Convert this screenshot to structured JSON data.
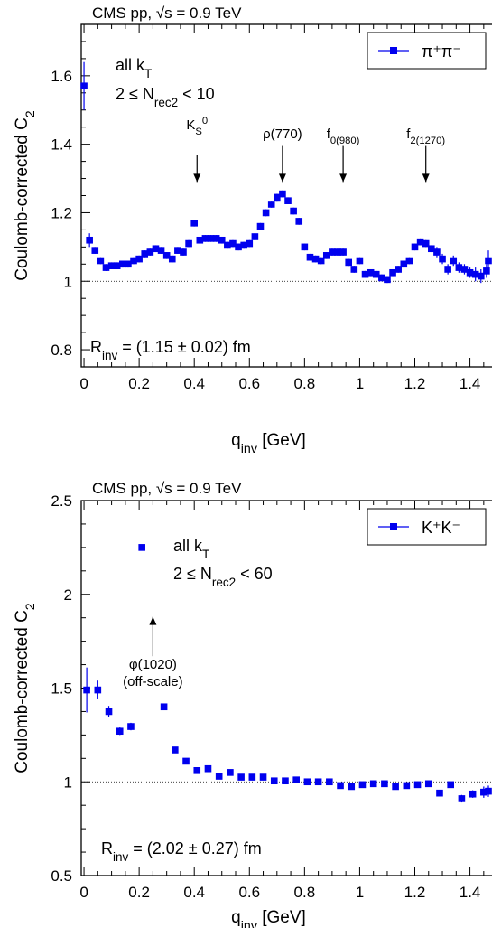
{
  "chart_data": [
    {
      "type": "scatter",
      "header": "CMS pp, √s = 0.9 TeV",
      "legend": {
        "entry": "π⁺π⁻",
        "placement": "top-right"
      },
      "xlabel": "q_inv [GeV]",
      "ylabel": "Coulomb-corrected C_2",
      "xlim": [
        -0.01,
        1.48
      ],
      "ylim": [
        0.75,
        1.75
      ],
      "xticks": [
        {
          "v": 0,
          "label": "0"
        },
        {
          "v": 0.2,
          "label": "0.2"
        },
        {
          "v": 0.4,
          "label": "0.4"
        },
        {
          "v": 0.6,
          "label": "0.6"
        },
        {
          "v": 0.8,
          "label": "0.8"
        },
        {
          "v": 1.0,
          "label": "1"
        },
        {
          "v": 1.2,
          "label": "1.2"
        },
        {
          "v": 1.4,
          "label": "1.4"
        }
      ],
      "yticks": [
        {
          "v": 0.8,
          "label": "0.8"
        },
        {
          "v": 1.0,
          "label": "1"
        },
        {
          "v": 1.2,
          "label": "1.2"
        },
        {
          "v": 1.4,
          "label": "1.4"
        },
        {
          "v": 1.6,
          "label": "1.6"
        }
      ],
      "reference_line": 1.0,
      "annotation": {
        "line1": "all k_T",
        "line2": "2 ≤ N_rec2 < 10"
      },
      "resonances": [
        {
          "label": "K_S^0",
          "x": 0.41,
          "y_from": 1.37,
          "y_to": 1.29
        },
        {
          "label": "ρ(770)",
          "x": 0.72,
          "y_from": 1.395,
          "y_to": 1.29
        },
        {
          "label": "f_0(980)",
          "x": 0.94,
          "y_from": 1.395,
          "y_to": 1.29
        },
        {
          "label": "f_2(1270)",
          "x": 1.24,
          "y_from": 1.395,
          "y_to": 1.29
        }
      ],
      "result": "R_inv = (1.15 ± 0.02) fm",
      "points": [
        {
          "x": 0.0,
          "y": 1.57,
          "e": 0.07
        },
        {
          "x": 0.02,
          "y": 1.12,
          "e": 0.02
        },
        {
          "x": 0.04,
          "y": 1.09,
          "e": 0.01
        },
        {
          "x": 0.06,
          "y": 1.06,
          "e": 0.01
        },
        {
          "x": 0.08,
          "y": 1.04,
          "e": 0.01
        },
        {
          "x": 0.1,
          "y": 1.045,
          "e": 0.01
        },
        {
          "x": 0.12,
          "y": 1.045,
          "e": 0.01
        },
        {
          "x": 0.14,
          "y": 1.05,
          "e": 0.01
        },
        {
          "x": 0.16,
          "y": 1.05,
          "e": 0.01
        },
        {
          "x": 0.18,
          "y": 1.06,
          "e": 0.01
        },
        {
          "x": 0.2,
          "y": 1.065,
          "e": 0.01
        },
        {
          "x": 0.22,
          "y": 1.08,
          "e": 0.01
        },
        {
          "x": 0.24,
          "y": 1.085,
          "e": 0.01
        },
        {
          "x": 0.26,
          "y": 1.095,
          "e": 0.01
        },
        {
          "x": 0.28,
          "y": 1.09,
          "e": 0.01
        },
        {
          "x": 0.3,
          "y": 1.075,
          "e": 0.01
        },
        {
          "x": 0.32,
          "y": 1.065,
          "e": 0.01
        },
        {
          "x": 0.34,
          "y": 1.09,
          "e": 0.01
        },
        {
          "x": 0.36,
          "y": 1.085,
          "e": 0.01
        },
        {
          "x": 0.38,
          "y": 1.11,
          "e": 0.01
        },
        {
          "x": 0.4,
          "y": 1.17,
          "e": 0.01
        },
        {
          "x": 0.42,
          "y": 1.12,
          "e": 0.01
        },
        {
          "x": 0.44,
          "y": 1.125,
          "e": 0.01
        },
        {
          "x": 0.46,
          "y": 1.125,
          "e": 0.01
        },
        {
          "x": 0.48,
          "y": 1.125,
          "e": 0.01
        },
        {
          "x": 0.5,
          "y": 1.12,
          "e": 0.01
        },
        {
          "x": 0.52,
          "y": 1.105,
          "e": 0.01
        },
        {
          "x": 0.54,
          "y": 1.11,
          "e": 0.01
        },
        {
          "x": 0.56,
          "y": 1.1,
          "e": 0.01
        },
        {
          "x": 0.58,
          "y": 1.105,
          "e": 0.01
        },
        {
          "x": 0.6,
          "y": 1.11,
          "e": 0.01
        },
        {
          "x": 0.62,
          "y": 1.13,
          "e": 0.01
        },
        {
          "x": 0.64,
          "y": 1.16,
          "e": 0.01
        },
        {
          "x": 0.66,
          "y": 1.2,
          "e": 0.01
        },
        {
          "x": 0.68,
          "y": 1.225,
          "e": 0.01
        },
        {
          "x": 0.7,
          "y": 1.245,
          "e": 0.01
        },
        {
          "x": 0.72,
          "y": 1.255,
          "e": 0.01
        },
        {
          "x": 0.74,
          "y": 1.235,
          "e": 0.01
        },
        {
          "x": 0.76,
          "y": 1.205,
          "e": 0.01
        },
        {
          "x": 0.78,
          "y": 1.175,
          "e": 0.01
        },
        {
          "x": 0.8,
          "y": 1.1,
          "e": 0.01
        },
        {
          "x": 0.82,
          "y": 1.07,
          "e": 0.01
        },
        {
          "x": 0.84,
          "y": 1.065,
          "e": 0.01
        },
        {
          "x": 0.86,
          "y": 1.06,
          "e": 0.01
        },
        {
          "x": 0.88,
          "y": 1.075,
          "e": 0.01
        },
        {
          "x": 0.9,
          "y": 1.085,
          "e": 0.01
        },
        {
          "x": 0.92,
          "y": 1.085,
          "e": 0.01
        },
        {
          "x": 0.94,
          "y": 1.085,
          "e": 0.01
        },
        {
          "x": 0.96,
          "y": 1.055,
          "e": 0.01
        },
        {
          "x": 0.98,
          "y": 1.035,
          "e": 0.01
        },
        {
          "x": 1.0,
          "y": 1.06,
          "e": 0.01
        },
        {
          "x": 1.02,
          "y": 1.02,
          "e": 0.01
        },
        {
          "x": 1.04,
          "y": 1.025,
          "e": 0.01
        },
        {
          "x": 1.06,
          "y": 1.02,
          "e": 0.01
        },
        {
          "x": 1.08,
          "y": 1.01,
          "e": 0.01
        },
        {
          "x": 1.1,
          "y": 1.005,
          "e": 0.01
        },
        {
          "x": 1.12,
          "y": 1.025,
          "e": 0.01
        },
        {
          "x": 1.14,
          "y": 1.035,
          "e": 0.01
        },
        {
          "x": 1.16,
          "y": 1.05,
          "e": 0.01
        },
        {
          "x": 1.18,
          "y": 1.06,
          "e": 0.01
        },
        {
          "x": 1.2,
          "y": 1.1,
          "e": 0.01
        },
        {
          "x": 1.22,
          "y": 1.115,
          "e": 0.01
        },
        {
          "x": 1.24,
          "y": 1.11,
          "e": 0.01
        },
        {
          "x": 1.26,
          "y": 1.095,
          "e": 0.01
        },
        {
          "x": 1.28,
          "y": 1.085,
          "e": 0.015
        },
        {
          "x": 1.3,
          "y": 1.065,
          "e": 0.015
        },
        {
          "x": 1.32,
          "y": 1.035,
          "e": 0.015
        },
        {
          "x": 1.34,
          "y": 1.06,
          "e": 0.015
        },
        {
          "x": 1.36,
          "y": 1.04,
          "e": 0.015
        },
        {
          "x": 1.38,
          "y": 1.035,
          "e": 0.015
        },
        {
          "x": 1.4,
          "y": 1.025,
          "e": 0.015
        },
        {
          "x": 1.42,
          "y": 1.02,
          "e": 0.02
        },
        {
          "x": 1.44,
          "y": 1.015,
          "e": 0.02
        },
        {
          "x": 1.46,
          "y": 1.03,
          "e": 0.02
        },
        {
          "x": 1.48,
          "y": 1.06,
          "e": 0.03
        }
      ]
    },
    {
      "type": "scatter",
      "header": "CMS pp, √s = 0.9 TeV",
      "legend": {
        "entry": "K⁺K⁻",
        "placement": "top-right"
      },
      "xlabel": "q_inv [GeV]",
      "ylabel": "Coulomb-corrected C_2",
      "xlim": [
        -0.01,
        1.48
      ],
      "ylim": [
        0.5,
        2.5
      ],
      "xticks": [
        {
          "v": 0,
          "label": "0"
        },
        {
          "v": 0.2,
          "label": "0.2"
        },
        {
          "v": 0.4,
          "label": "0.4"
        },
        {
          "v": 0.6,
          "label": "0.6"
        },
        {
          "v": 0.8,
          "label": "0.8"
        },
        {
          "v": 1.0,
          "label": "1"
        },
        {
          "v": 1.2,
          "label": "1.2"
        },
        {
          "v": 1.4,
          "label": "1.4"
        }
      ],
      "yticks": [
        {
          "v": 0.5,
          "label": "0.5"
        },
        {
          "v": 1.0,
          "label": "1"
        },
        {
          "v": 1.5,
          "label": "1.5"
        },
        {
          "v": 2.0,
          "label": "2"
        },
        {
          "v": 2.5,
          "label": "2.5"
        }
      ],
      "reference_line": 1.0,
      "annotation": {
        "line1": "all k_T",
        "line2": "2 ≤ N_rec2 < 60"
      },
      "resonances": [
        {
          "label": "φ(1020)",
          "sub": "(off-scale)",
          "x": 0.25,
          "y_from": 1.67,
          "y_to": 1.88
        }
      ],
      "result": "R_inv = (2.02 ± 0.27) fm",
      "points": [
        {
          "x": 0.01,
          "y": 1.49,
          "e": 0.12
        },
        {
          "x": 0.05,
          "y": 1.49,
          "e": 0.05
        },
        {
          "x": 0.09,
          "y": 1.375,
          "e": 0.03
        },
        {
          "x": 0.13,
          "y": 1.27,
          "e": 0.02
        },
        {
          "x": 0.17,
          "y": 1.295,
          "e": 0.02
        },
        {
          "x": 0.21,
          "y": 2.25,
          "e": 0.0
        },
        {
          "x": 0.29,
          "y": 1.4,
          "e": 0.01
        },
        {
          "x": 0.33,
          "y": 1.17,
          "e": 0.01
        },
        {
          "x": 0.37,
          "y": 1.11,
          "e": 0.01
        },
        {
          "x": 0.41,
          "y": 1.06,
          "e": 0.01
        },
        {
          "x": 0.45,
          "y": 1.07,
          "e": 0.01
        },
        {
          "x": 0.49,
          "y": 1.03,
          "e": 0.01
        },
        {
          "x": 0.53,
          "y": 1.05,
          "e": 0.01
        },
        {
          "x": 0.57,
          "y": 1.025,
          "e": 0.01
        },
        {
          "x": 0.61,
          "y": 1.025,
          "e": 0.01
        },
        {
          "x": 0.65,
          "y": 1.025,
          "e": 0.01
        },
        {
          "x": 0.69,
          "y": 1.005,
          "e": 0.01
        },
        {
          "x": 0.73,
          "y": 1.005,
          "e": 0.01
        },
        {
          "x": 0.77,
          "y": 1.01,
          "e": 0.01
        },
        {
          "x": 0.81,
          "y": 1.0,
          "e": 0.01
        },
        {
          "x": 0.85,
          "y": 1.0,
          "e": 0.01
        },
        {
          "x": 0.89,
          "y": 1.0,
          "e": 0.01
        },
        {
          "x": 0.93,
          "y": 0.98,
          "e": 0.01
        },
        {
          "x": 0.97,
          "y": 0.975,
          "e": 0.01
        },
        {
          "x": 1.01,
          "y": 0.985,
          "e": 0.01
        },
        {
          "x": 1.05,
          "y": 0.99,
          "e": 0.01
        },
        {
          "x": 1.09,
          "y": 0.99,
          "e": 0.01
        },
        {
          "x": 1.13,
          "y": 0.975,
          "e": 0.01
        },
        {
          "x": 1.17,
          "y": 0.98,
          "e": 0.01
        },
        {
          "x": 1.21,
          "y": 0.985,
          "e": 0.01
        },
        {
          "x": 1.25,
          "y": 0.99,
          "e": 0.01
        },
        {
          "x": 1.29,
          "y": 0.94,
          "e": 0.015
        },
        {
          "x": 1.33,
          "y": 0.985,
          "e": 0.015
        },
        {
          "x": 1.37,
          "y": 0.91,
          "e": 0.02
        },
        {
          "x": 1.41,
          "y": 0.935,
          "e": 0.02
        },
        {
          "x": 1.45,
          "y": 0.945,
          "e": 0.03
        },
        {
          "x": 1.48,
          "y": 0.95,
          "e": 0.03
        }
      ]
    }
  ]
}
